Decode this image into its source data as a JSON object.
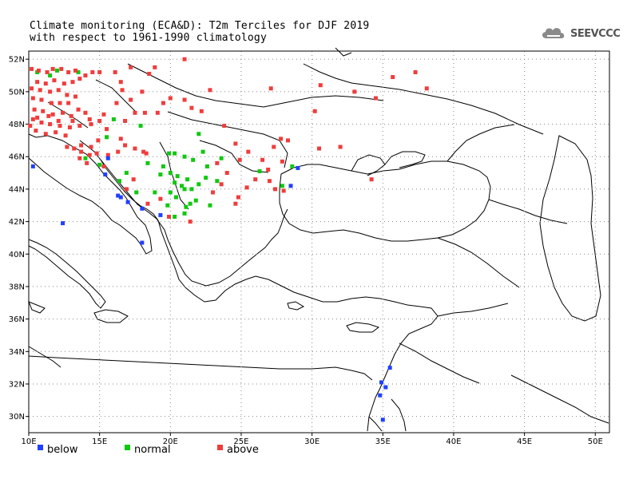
{
  "title_line1": "Climate monitoring (ECA&D): T2m Terciles for DJF 2019",
  "title_line2": "with respect to 1961-1990 climatology",
  "logo_text": "SEEVCCC",
  "lon_ticks": [
    "10E",
    "15E",
    "20E",
    "25E",
    "30E",
    "35E",
    "40E",
    "45E",
    "50E"
  ],
  "lat_ticks": [
    "30N",
    "32N",
    "34N",
    "36N",
    "38N",
    "40N",
    "42N",
    "44N",
    "46N",
    "48N",
    "50N",
    "52N"
  ],
  "colors": {
    "below": "#2040ff",
    "normal": "#10c810",
    "above": "#f03c3c"
  },
  "legend": [
    {
      "key": "below",
      "label": "below"
    },
    {
      "key": "normal",
      "label": "normal"
    },
    {
      "key": "above",
      "label": "above"
    }
  ],
  "map_extent": {
    "lon": [
      10,
      51
    ],
    "lat": [
      29,
      52.5
    ]
  },
  "stations": {
    "below": [
      [
        10.3,
        45.4
      ],
      [
        12.4,
        41.9
      ],
      [
        15.6,
        45.9
      ],
      [
        16.3,
        43.6
      ],
      [
        16.5,
        43.5
      ],
      [
        17.0,
        43.2
      ],
      [
        18.0,
        42.8
      ],
      [
        19.3,
        42.4
      ],
      [
        18.0,
        40.7
      ],
      [
        28.5,
        44.2
      ],
      [
        29.0,
        45.3
      ],
      [
        34.9,
        32.1
      ],
      [
        35.2,
        31.8
      ],
      [
        34.8,
        31.3
      ],
      [
        35.5,
        33.0
      ],
      [
        35.0,
        29.8
      ],
      [
        15.4,
        44.9
      ]
    ],
    "normal": [
      [
        10.6,
        51.2
      ],
      [
        11.5,
        51.0
      ],
      [
        12.0,
        51.3
      ],
      [
        13.5,
        51.2
      ],
      [
        15.5,
        47.2
      ],
      [
        16.0,
        48.3
      ],
      [
        17.9,
        47.9
      ],
      [
        14.0,
        45.9
      ],
      [
        15.0,
        45.5
      ],
      [
        16.9,
        45.0
      ],
      [
        18.4,
        45.6
      ],
      [
        19.9,
        46.2
      ],
      [
        20.3,
        46.2
      ],
      [
        21.0,
        46.0
      ],
      [
        22.3,
        46.3
      ],
      [
        19.3,
        44.9
      ],
      [
        20.5,
        44.8
      ],
      [
        21.2,
        44.6
      ],
      [
        20.8,
        44.2
      ],
      [
        21.5,
        44.0
      ],
      [
        22.0,
        44.3
      ],
      [
        20.0,
        43.8
      ],
      [
        21.8,
        43.3
      ],
      [
        21.4,
        43.1
      ],
      [
        20.4,
        43.5
      ],
      [
        19.8,
        43.0
      ],
      [
        21.0,
        42.5
      ],
      [
        20.3,
        42.3
      ],
      [
        21.1,
        42.9
      ],
      [
        21.0,
        44.0
      ],
      [
        19.5,
        45.4
      ],
      [
        20.0,
        45.0
      ],
      [
        22.5,
        44.7
      ],
      [
        23.6,
        45.9
      ],
      [
        26.3,
        45.1
      ],
      [
        27.9,
        44.2
      ],
      [
        28.6,
        45.4
      ],
      [
        18.9,
        43.8
      ],
      [
        16.4,
        44.5
      ],
      [
        22.8,
        43.0
      ],
      [
        23.3,
        44.5
      ],
      [
        22.6,
        45.4
      ],
      [
        20.3,
        44.4
      ],
      [
        21.6,
        45.8
      ],
      [
        17.6,
        43.8
      ],
      [
        22.0,
        47.4
      ]
    ],
    "above": [
      [
        10.2,
        51.4
      ],
      [
        10.7,
        51.3
      ],
      [
        11.3,
        51.2
      ],
      [
        11.7,
        51.4
      ],
      [
        12.3,
        51.4
      ],
      [
        12.8,
        51.2
      ],
      [
        13.3,
        51.3
      ],
      [
        14.0,
        51.0
      ],
      [
        14.5,
        51.2
      ],
      [
        15.0,
        51.2
      ],
      [
        13.6,
        50.8
      ],
      [
        13.1,
        50.6
      ],
      [
        12.5,
        50.5
      ],
      [
        11.8,
        50.7
      ],
      [
        11.2,
        50.5
      ],
      [
        10.6,
        50.6
      ],
      [
        10.2,
        50.2
      ],
      [
        10.8,
        50.1
      ],
      [
        11.5,
        50.0
      ],
      [
        12.1,
        50.1
      ],
      [
        12.7,
        49.8
      ],
      [
        13.3,
        49.7
      ],
      [
        10.3,
        49.6
      ],
      [
        10.9,
        49.5
      ],
      [
        11.6,
        49.3
      ],
      [
        12.2,
        49.3
      ],
      [
        12.8,
        49.3
      ],
      [
        10.4,
        48.9
      ],
      [
        11.0,
        48.8
      ],
      [
        11.7,
        48.6
      ],
      [
        12.4,
        48.7
      ],
      [
        13.0,
        48.5
      ],
      [
        13.5,
        48.9
      ],
      [
        14.0,
        48.7
      ],
      [
        10.3,
        48.3
      ],
      [
        10.9,
        48.1
      ],
      [
        11.5,
        48.0
      ],
      [
        12.2,
        47.9
      ],
      [
        12.9,
        47.8
      ],
      [
        13.6,
        47.9
      ],
      [
        14.4,
        48.0
      ],
      [
        15.0,
        48.2
      ],
      [
        10.5,
        47.6
      ],
      [
        11.2,
        47.4
      ],
      [
        11.9,
        47.5
      ],
      [
        12.6,
        47.3
      ],
      [
        10.1,
        47.9
      ],
      [
        10.6,
        48.4
      ],
      [
        11.4,
        48.5
      ],
      [
        12.1,
        48.2
      ],
      [
        13.1,
        48.2
      ],
      [
        14.3,
        48.3
      ],
      [
        13.2,
        46.5
      ],
      [
        13.7,
        46.3
      ],
      [
        14.3,
        46.1
      ],
      [
        14.8,
        46.2
      ],
      [
        13.6,
        45.9
      ],
      [
        14.1,
        45.6
      ],
      [
        15.3,
        45.4
      ],
      [
        15.6,
        46.1
      ],
      [
        16.3,
        46.3
      ],
      [
        16.8,
        46.7
      ],
      [
        17.5,
        46.5
      ],
      [
        18.1,
        46.3
      ],
      [
        16.5,
        47.1
      ],
      [
        16.8,
        48.2
      ],
      [
        17.5,
        48.7
      ],
      [
        18.2,
        48.7
      ],
      [
        19.1,
        48.7
      ],
      [
        19.5,
        49.3
      ],
      [
        20.0,
        49.6
      ],
      [
        21.0,
        49.5
      ],
      [
        21.5,
        49.0
      ],
      [
        22.2,
        48.8
      ],
      [
        22.8,
        50.1
      ],
      [
        17.2,
        49.5
      ],
      [
        16.5,
        50.6
      ],
      [
        18.0,
        50.0
      ],
      [
        18.5,
        51.1
      ],
      [
        16.1,
        51.2
      ],
      [
        17.2,
        51.5
      ],
      [
        18.9,
        51.5
      ],
      [
        23.8,
        47.9
      ],
      [
        24.6,
        46.8
      ],
      [
        23.3,
        45.6
      ],
      [
        24.0,
        45.0
      ],
      [
        24.9,
        45.8
      ],
      [
        26.0,
        44.6
      ],
      [
        27.0,
        44.5
      ],
      [
        27.4,
        44.0
      ],
      [
        26.5,
        45.8
      ],
      [
        27.3,
        46.6
      ],
      [
        28.3,
        47.0
      ],
      [
        27.9,
        45.7
      ],
      [
        25.5,
        46.3
      ],
      [
        23.6,
        44.3
      ],
      [
        24.8,
        43.5
      ],
      [
        25.4,
        44.1
      ],
      [
        26.9,
        45.2
      ],
      [
        28.0,
        43.9
      ],
      [
        27.8,
        47.1
      ],
      [
        30.5,
        46.5
      ],
      [
        34.2,
        44.6
      ],
      [
        32.0,
        46.6
      ],
      [
        30.6,
        50.4
      ],
      [
        30.2,
        48.8
      ],
      [
        33.0,
        50.0
      ],
      [
        34.5,
        49.6
      ],
      [
        35.7,
        50.9
      ],
      [
        37.3,
        51.2
      ],
      [
        38.1,
        50.2
      ],
      [
        27.1,
        50.2
      ],
      [
        21.0,
        52.0
      ],
      [
        18.3,
        46.2
      ],
      [
        17.4,
        44.6
      ],
      [
        16.9,
        44.0
      ],
      [
        18.4,
        43.1
      ],
      [
        19.3,
        43.4
      ],
      [
        12.7,
        46.6
      ],
      [
        14.4,
        46.6
      ],
      [
        14.9,
        47.0
      ],
      [
        15.3,
        48.6
      ],
      [
        16.2,
        49.3
      ],
      [
        16.6,
        50.1
      ],
      [
        15.5,
        47.7
      ],
      [
        13.7,
        46.7
      ],
      [
        19.9,
        42.3
      ],
      [
        21.4,
        42.0
      ],
      [
        24.6,
        43.1
      ],
      [
        23.0,
        43.8
      ]
    ]
  }
}
